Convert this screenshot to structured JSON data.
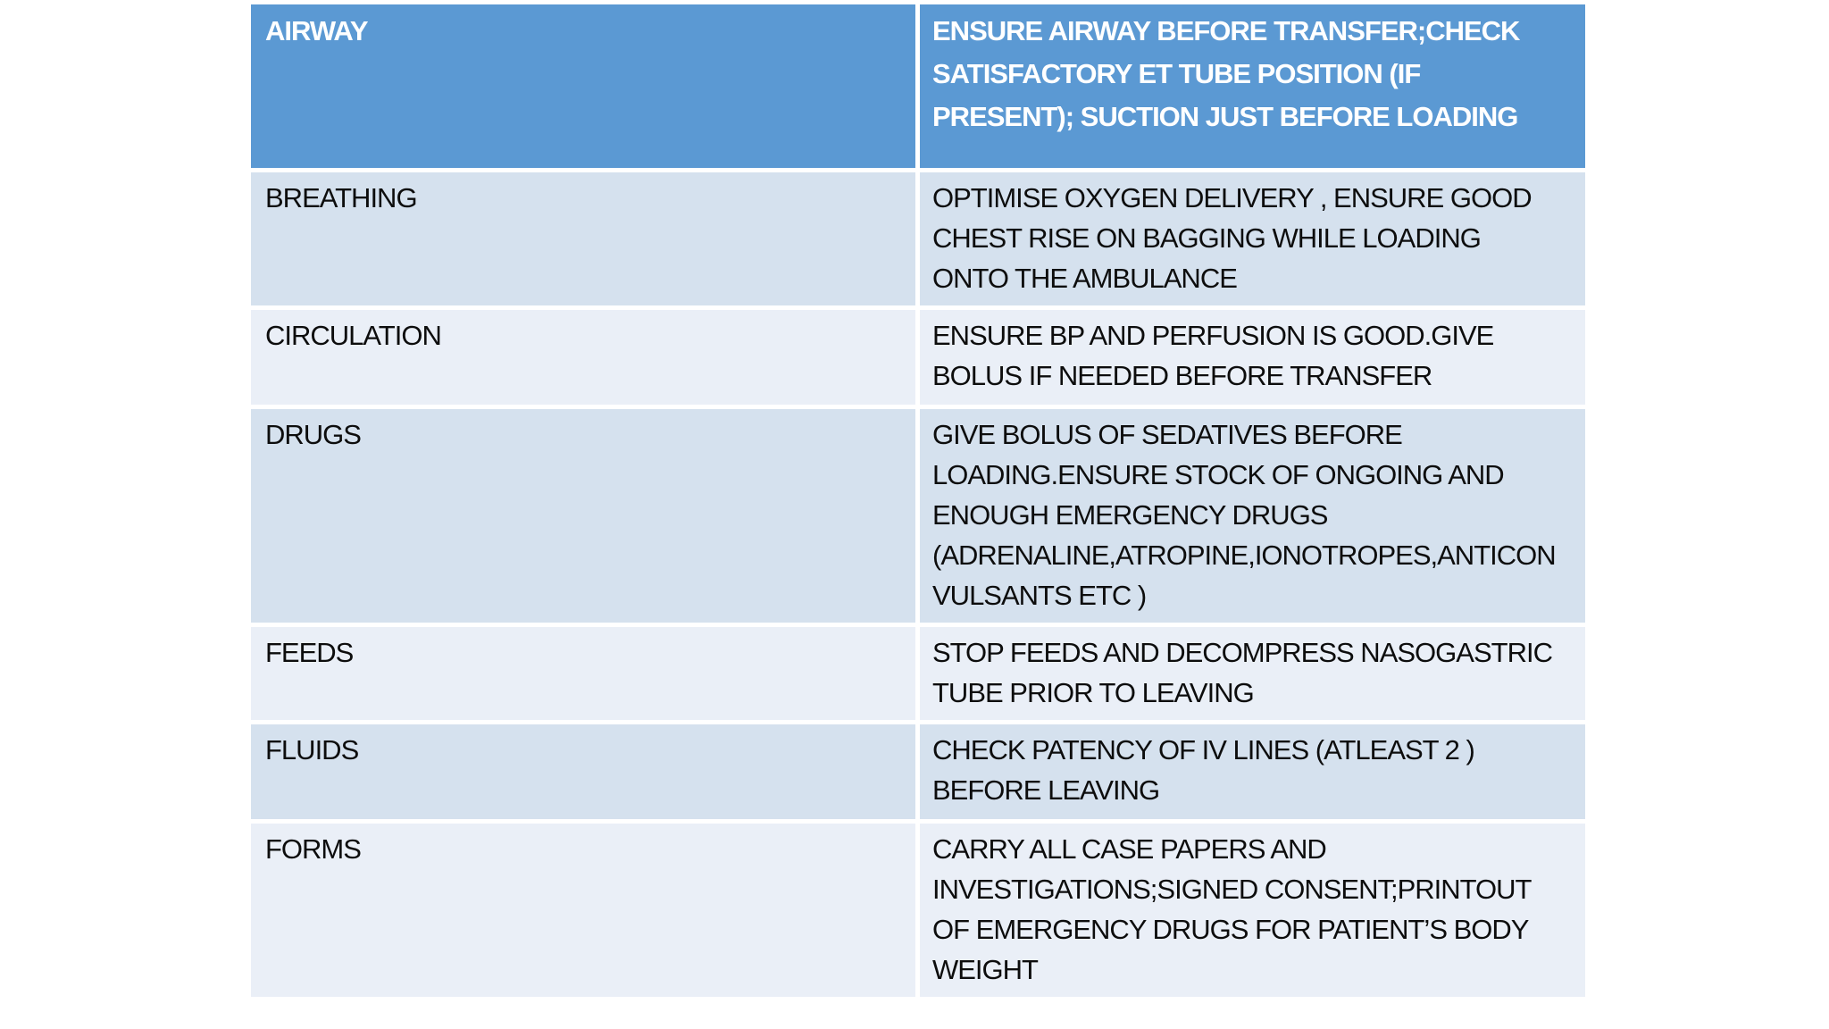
{
  "colors": {
    "header_bg": "#5b99d3",
    "header_text": "#ffffff",
    "band_dark": "#d5e1ee",
    "band_light": "#eaeff7",
    "body_text": "#0d0d0d"
  },
  "table": {
    "rows": [
      {
        "label": "AIRWAY",
        "detail": "ENSURE AIRWAY BEFORE TRANSFER;CHECK SATISFACTORY ET TUBE POSITION (IF PRESENT); SUCTION JUST BEFORE LOADING"
      },
      {
        "label": "BREATHING",
        "detail": "OPTIMISE OXYGEN DELIVERY , ENSURE GOOD CHEST RISE ON BAGGING WHILE LOADING ONTO THE AMBULANCE"
      },
      {
        "label": "CIRCULATION",
        "detail": "ENSURE BP AND PERFUSION IS GOOD.GIVE BOLUS IF NEEDED BEFORE TRANSFER"
      },
      {
        "label": "DRUGS",
        "detail": "GIVE BOLUS OF SEDATIVES BEFORE LOADING.ENSURE STOCK OF ONGOING AND ENOUGH EMERGENCY DRUGS (ADRENALINE,ATROPINE,IONOTROPES,ANTICONVULSANTS ETC )"
      },
      {
        "label": "FEEDS",
        "detail": "STOP FEEDS AND DECOMPRESS NASOGASTRIC TUBE PRIOR TO LEAVING"
      },
      {
        "label": "FLUIDS",
        "detail": "CHECK PATENCY OF IV LINES (ATLEAST 2 ) BEFORE LEAVING"
      },
      {
        "label": "FORMS",
        "detail": "CARRY ALL CASE PAPERS AND INVESTIGATIONS;SIGNED CONSENT;PRINTOUT OF EMERGENCY DRUGS FOR PATIENT’S BODY WEIGHT"
      }
    ]
  }
}
